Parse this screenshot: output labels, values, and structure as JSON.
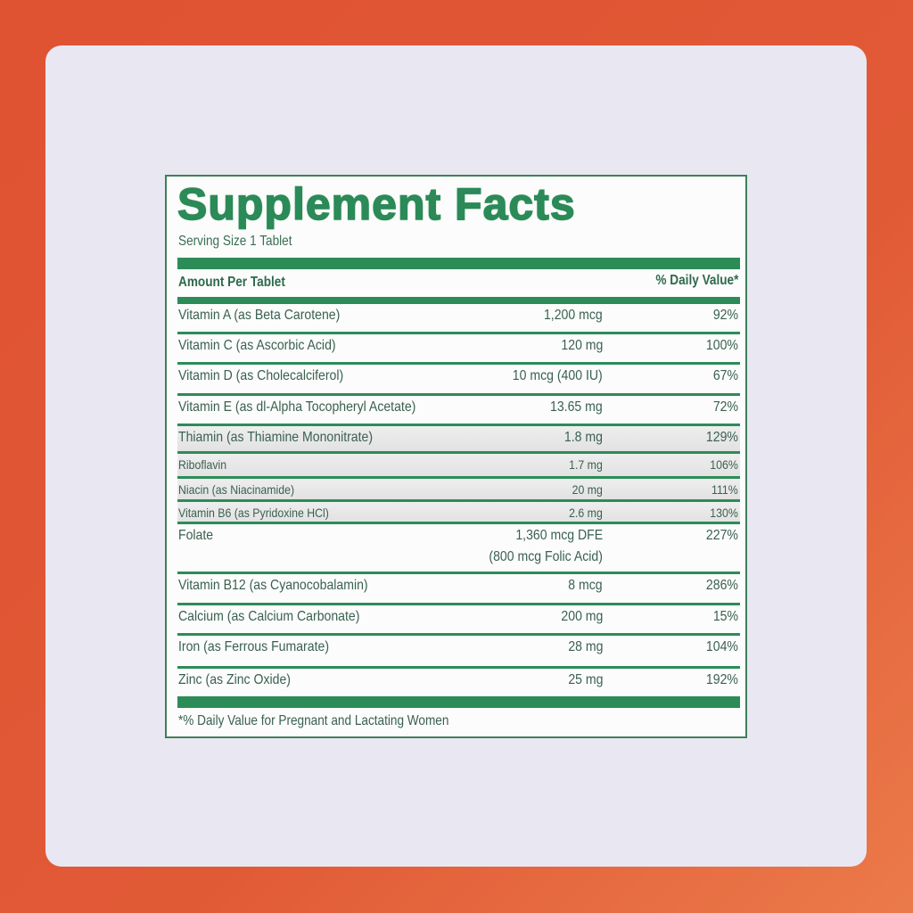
{
  "title": "Supplement Facts",
  "serving_size": "Serving Size 1 Tablet",
  "header": {
    "amount": "Amount Per Tablet",
    "daily_value": "% Daily Value*"
  },
  "nutrients": [
    {
      "name": "Vitamin A (as Beta Carotene)",
      "amount": "1,200 mcg",
      "dv": "92%"
    },
    {
      "name": "Vitamin C (as Ascorbic Acid)",
      "amount": "120 mg",
      "dv": "100%"
    },
    {
      "name": "Vitamin D (as Cholecalciferol)",
      "amount": "10 mcg (400 IU)",
      "dv": "67%"
    },
    {
      "name": "Vitamin E (as dl-Alpha Tocopheryl Acetate)",
      "amount": "13.65 mg",
      "dv": "72%"
    },
    {
      "name": "Thiamin (as Thiamine Mononitrate)",
      "amount": "1.8 mg",
      "dv": "129%"
    },
    {
      "name": "Riboflavin",
      "amount": "1.7 mg",
      "dv": "106%"
    },
    {
      "name": "Niacin (as Niacinamide)",
      "amount": "20 mg",
      "dv": "111%"
    },
    {
      "name": "Vitamin B6 (as Pyridoxine HCl)",
      "amount": "2.6 mg",
      "dv": "130%"
    },
    {
      "name": "Folate",
      "amount": "1,360 mcg DFE",
      "amount_note": "(800 mcg Folic Acid)",
      "dv": "227%"
    },
    {
      "name": "Vitamin B12 (as Cyanocobalamin)",
      "amount": "8 mcg",
      "dv": "286%"
    },
    {
      "name": "Calcium (as Calcium Carbonate)",
      "amount": "200 mg",
      "dv": "15%"
    },
    {
      "name": "Iron (as Ferrous Fumarate)",
      "amount": "28 mg",
      "dv": "104%"
    },
    {
      "name": "Zinc (as Zinc Oxide)",
      "amount": "25 mg",
      "dv": "192%"
    }
  ],
  "footnote": "*% Daily Value for Pregnant and Lactating Women",
  "colors": {
    "label_green": "#2c8c58",
    "background": "#e05535",
    "card": "#e9e8f2"
  }
}
